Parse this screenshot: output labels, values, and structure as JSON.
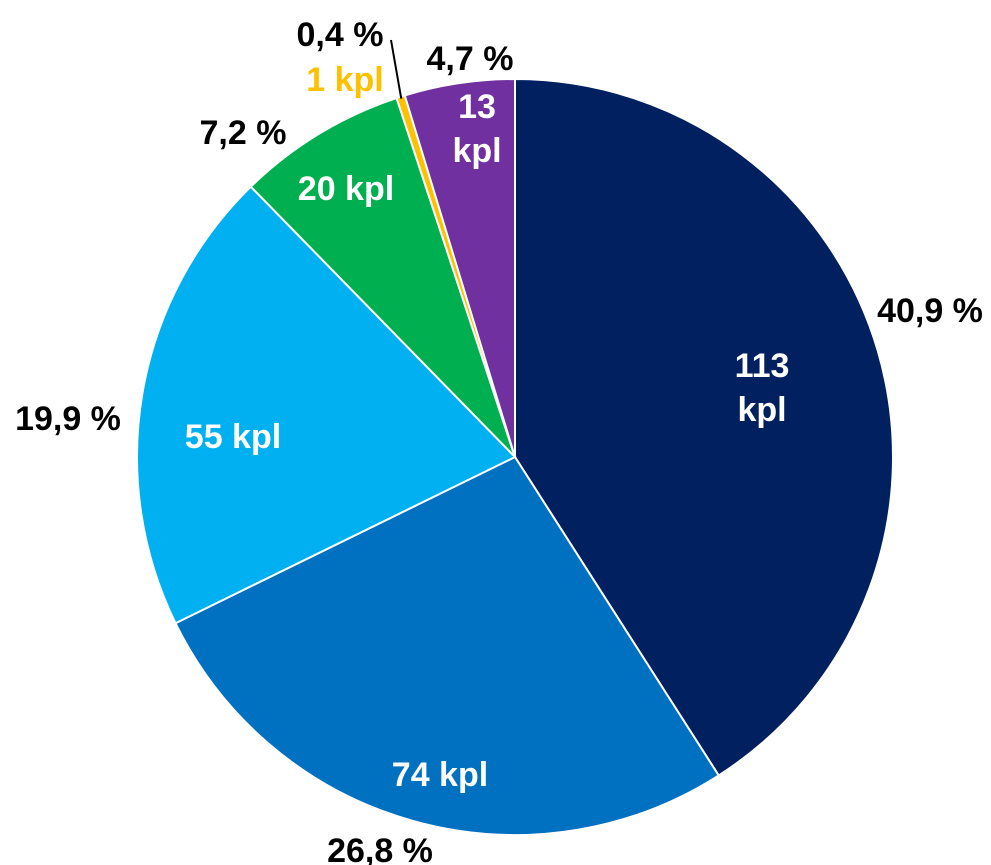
{
  "chart_data": {
    "type": "pie",
    "start_angle_deg": 0,
    "direction": "clockwise",
    "slices": [
      {
        "count": 113,
        "unit": "kpl",
        "count_label": "113 kpl",
        "percent": 40.9,
        "percent_label": "40,9 %",
        "color": "#002060",
        "label_color": "#ffffff"
      },
      {
        "count": 74,
        "unit": "kpl",
        "count_label": "74 kpl",
        "percent": 26.8,
        "percent_label": "26,8 %",
        "color": "#0070C0",
        "label_color": "#ffffff"
      },
      {
        "count": 55,
        "unit": "kpl",
        "count_label": "55 kpl",
        "percent": 19.9,
        "percent_label": "19,9 %",
        "color": "#00B0F0",
        "label_color": "#ffffff"
      },
      {
        "count": 20,
        "unit": "kpl",
        "count_label": "20 kpl",
        "percent": 7.2,
        "percent_label": "7,2 %",
        "color": "#00B050",
        "label_color": "#ffffff"
      },
      {
        "count": 1,
        "unit": "kpl",
        "count_label": "1 kpl",
        "percent": 0.4,
        "percent_label": "0,4 %",
        "color": "#FFC000",
        "label_color": "#FFC000"
      },
      {
        "count": 13,
        "unit": "kpl",
        "count_label": "13 kpl",
        "percent": 4.7,
        "percent_label": "4,7 %",
        "color": "#7030A0",
        "label_color": "#ffffff"
      }
    ],
    "percent_label_color": "#000000",
    "legend": "none",
    "title": ""
  }
}
